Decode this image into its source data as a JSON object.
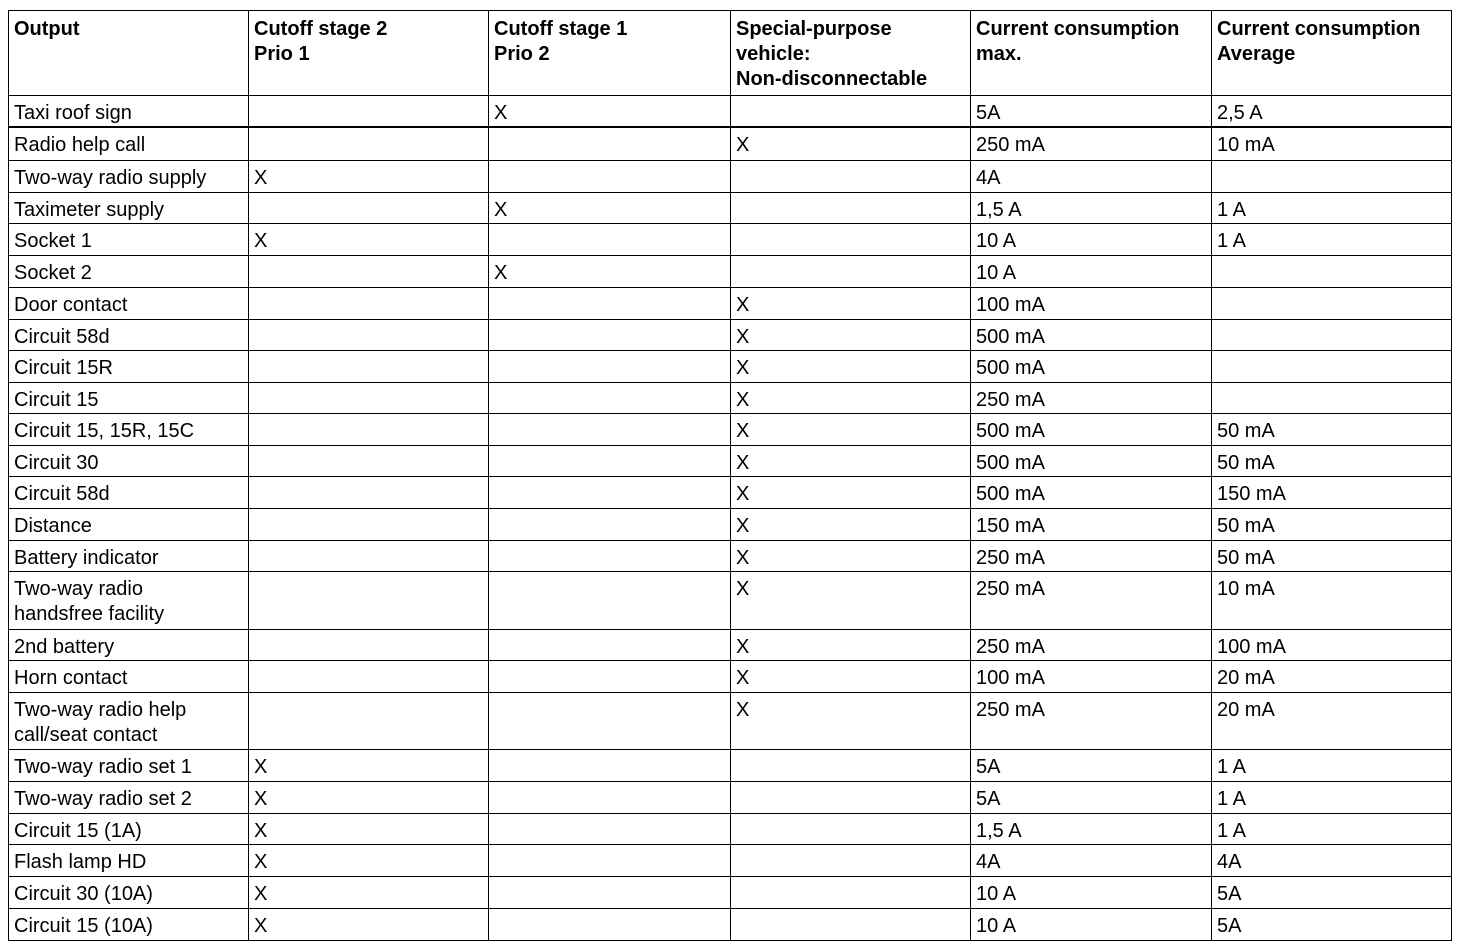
{
  "table": {
    "headers": [
      "Output",
      "Cutoff stage 2\nPrio 1",
      "Cutoff stage 1\nPrio 2",
      "Special-purpose\nvehicle:\nNon-disconnectable",
      "Current consumption\nmax.",
      "Current consumption\nAverage"
    ],
    "rows": [
      [
        "Taxi roof sign",
        "",
        "X",
        "",
        "5A",
        "2,5 A"
      ],
      [
        "Radio help call",
        "",
        "",
        "X",
        "250 mA",
        "10 mA"
      ],
      [
        "Two-way radio supply",
        "X",
        "",
        "",
        "4A",
        ""
      ],
      [
        "Taximeter supply",
        "",
        "X",
        "",
        "1,5 A",
        "1 A"
      ],
      [
        "Socket 1",
        "X",
        "",
        "",
        "10 A",
        "1 A"
      ],
      [
        "Socket 2",
        "",
        "X",
        "",
        "10 A",
        ""
      ],
      [
        "Door contact",
        "",
        "",
        "X",
        "100 mA",
        ""
      ],
      [
        "Circuit 58d",
        "",
        "",
        "X",
        "500 mA",
        ""
      ],
      [
        "Circuit 15R",
        "",
        "",
        "X",
        "500 mA",
        ""
      ],
      [
        "Circuit 15",
        "",
        "",
        "X",
        "250 mA",
        ""
      ],
      [
        "Circuit 15, 15R, 15C",
        "",
        "",
        "X",
        "500 mA",
        "50 mA"
      ],
      [
        "Circuit 30",
        "",
        "",
        "X",
        "500 mA",
        "50 mA"
      ],
      [
        "Circuit 58d",
        "",
        "",
        "X",
        "500 mA",
        "150 mA"
      ],
      [
        "Distance",
        "",
        "",
        "X",
        "150 mA",
        "50 mA"
      ],
      [
        "Battery indicator",
        "",
        "",
        "X",
        "250 mA",
        "50 mA"
      ],
      [
        "Two-way radio\nhandsfree facility",
        "",
        "",
        "X",
        "250 mA",
        "10 mA"
      ],
      [
        "2nd battery",
        "",
        "",
        "X",
        "250 mA",
        "100 mA"
      ],
      [
        "Horn contact",
        "",
        "",
        "X",
        "100 mA",
        "20 mA"
      ],
      [
        "Two-way radio help\ncall/seat contact",
        "",
        "",
        "X",
        "250 mA",
        "20 mA"
      ],
      [
        "Two-way radio set 1",
        "X",
        "",
        "",
        "5A",
        "1 A"
      ],
      [
        "Two-way radio set 2",
        "X",
        "",
        "",
        "5A",
        "1 A"
      ],
      [
        "Circuit 15 (1A)",
        "X",
        "",
        "",
        "1,5 A",
        "1 A"
      ],
      [
        "Flash lamp HD",
        "X",
        "",
        "",
        "4A",
        "4A"
      ],
      [
        "Circuit 30 (10A)",
        "X",
        "",
        "",
        "10 A",
        "5A"
      ],
      [
        "Circuit 15 (10A)",
        "X",
        "",
        "",
        "10 A",
        "5A"
      ]
    ]
  }
}
